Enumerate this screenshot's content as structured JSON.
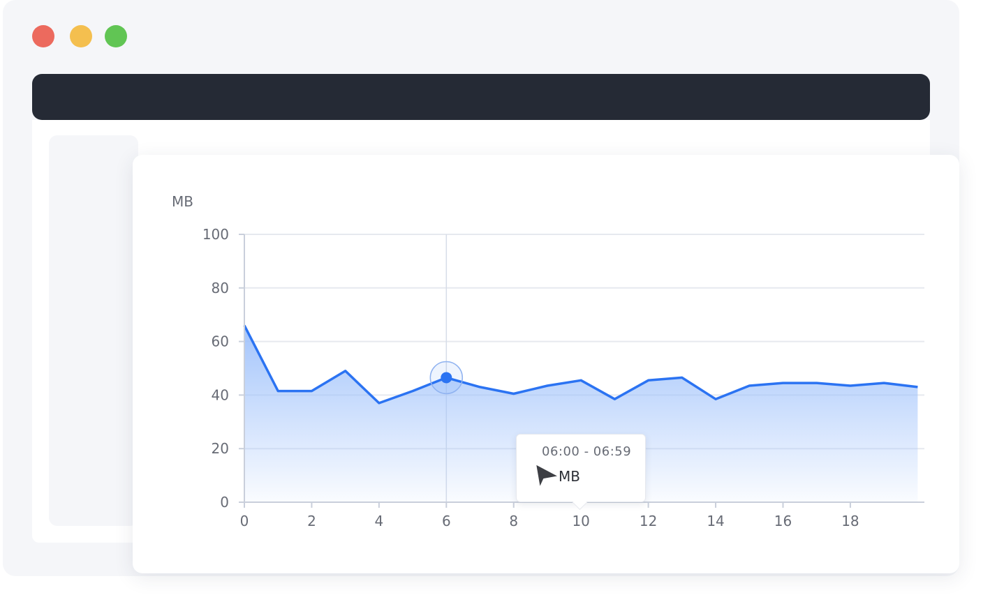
{
  "window": {
    "traffic_lights": [
      {
        "name": "close",
        "color": "#ec6a5e"
      },
      {
        "name": "minimize",
        "color": "#f4bf4f"
      },
      {
        "name": "maximize",
        "color": "#61c554"
      }
    ],
    "topbar_color": "#252a35"
  },
  "chart_data": {
    "type": "area",
    "ylabel": "MB",
    "xlabel": "",
    "title": "",
    "x": [
      0,
      1,
      2,
      3,
      4,
      5,
      6,
      7,
      8,
      9,
      10,
      11,
      12,
      13,
      14,
      15,
      16,
      17,
      18,
      19,
      20
    ],
    "values": [
      66,
      41.5,
      41.5,
      49,
      37,
      41.5,
      46.5,
      43,
      40.5,
      43.5,
      45.5,
      38.5,
      45.5,
      46.5,
      38.5,
      43.5,
      44.5,
      44.5,
      43.5,
      44.5,
      43
    ],
    "xlim": [
      0,
      20
    ],
    "ylim": [
      0,
      100
    ],
    "x_ticks": [
      "0",
      "2",
      "4",
      "6",
      "8",
      "10",
      "12",
      "14",
      "16",
      "18"
    ],
    "y_ticks": [
      "0",
      "20",
      "40",
      "60",
      "80",
      "100"
    ],
    "grid": true,
    "line_color": "#2b73f2",
    "fill_color": "#9ec1fb",
    "highlight_index": 6,
    "tooltip": {
      "time": "06:00 - 06:59",
      "value_text": "MB"
    }
  }
}
